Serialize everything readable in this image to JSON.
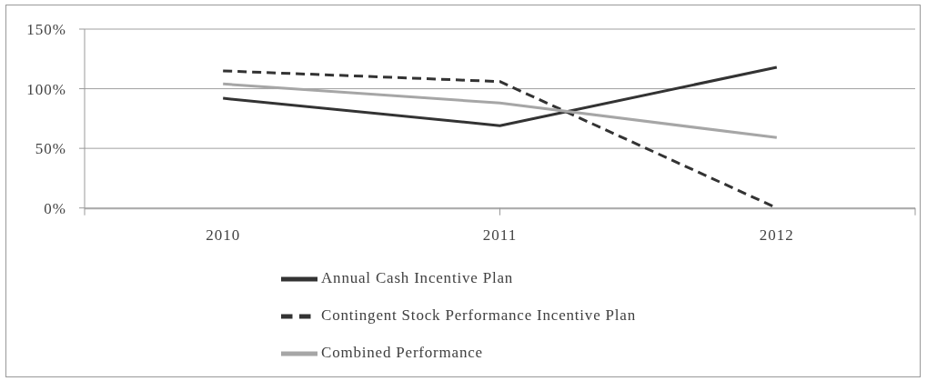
{
  "chart_data": {
    "type": "line",
    "categories": [
      "2010",
      "2011",
      "2012"
    ],
    "series": [
      {
        "name": "Annual Cash Incentive Plan",
        "color": "#333333",
        "line_style": "solid",
        "values": [
          92,
          69,
          118
        ]
      },
      {
        "name": "Contingent Stock Performance Incentive Plan",
        "color": "#333333",
        "line_style": "dashed",
        "values": [
          115,
          106,
          0
        ]
      },
      {
        "name": "Combined Performance",
        "color": "#a6a6a6",
        "line_style": "solid",
        "values": [
          104,
          88,
          59
        ]
      }
    ],
    "ylim": [
      0,
      150
    ],
    "yticks": [
      {
        "value": 0,
        "label": "0%"
      },
      {
        "value": 50,
        "label": "50%"
      },
      {
        "value": 100,
        "label": "100%"
      },
      {
        "value": 150,
        "label": "150%"
      }
    ],
    "grid": "y",
    "legend": "bottom"
  }
}
